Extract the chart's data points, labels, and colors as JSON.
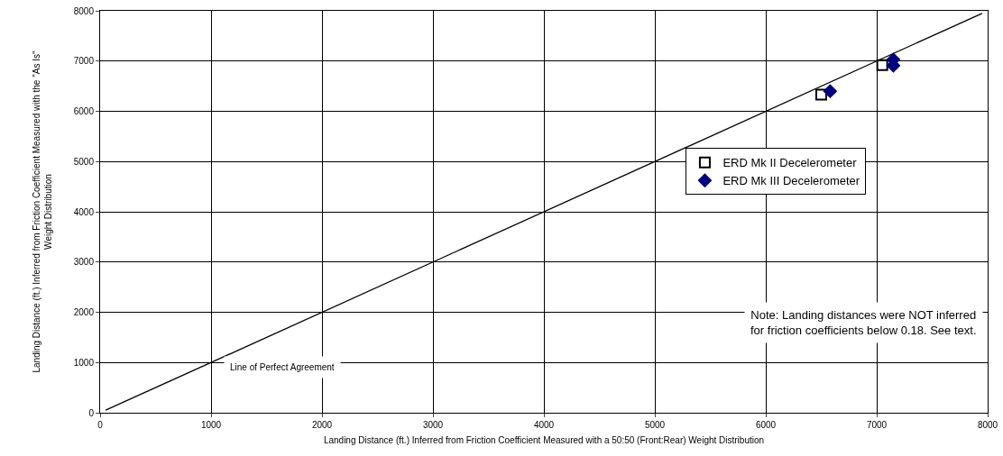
{
  "chart_data": {
    "type": "scatter",
    "xlabel": "Landing Distance (ft.) Inferred from Friction Coefficient Measured with a 50:50 (Front:Rear) Weight Distribution",
    "ylabel": "Landing Distance (ft.) Inferred from Friction Coefficient Measured with the \"As Is\"\nWeight Distribution",
    "xlim": [
      0,
      8000
    ],
    "ylim": [
      0,
      8000
    ],
    "xticks": [
      0,
      1000,
      2000,
      3000,
      4000,
      5000,
      6000,
      7000,
      8000
    ],
    "yticks": [
      0,
      1000,
      2000,
      3000,
      4000,
      5000,
      6000,
      7000,
      8000
    ],
    "grid": true,
    "legend": "right",
    "series": [
      {
        "name": "ERD Mk II Decelerometer",
        "color": "#000000",
        "marker": "square",
        "x": [
          6500,
          7050
        ],
        "values": [
          6330,
          6920
        ]
      },
      {
        "name": "ERD Mk III Decelerometer",
        "color": "#000080",
        "marker": "diamond",
        "x": [
          6580,
          7150,
          7150
        ],
        "values": [
          6400,
          7030,
          6910
        ]
      },
      {
        "type": "line",
        "color": "#000000",
        "marker": "none",
        "x": [
          50,
          7950
        ],
        "values": [
          50,
          7950
        ]
      }
    ],
    "annotations": [
      "Line of Perfect Agreement",
      "Note: Landing distances were NOT inferred\nfor friction coefficients below 0.18. See text."
    ]
  }
}
